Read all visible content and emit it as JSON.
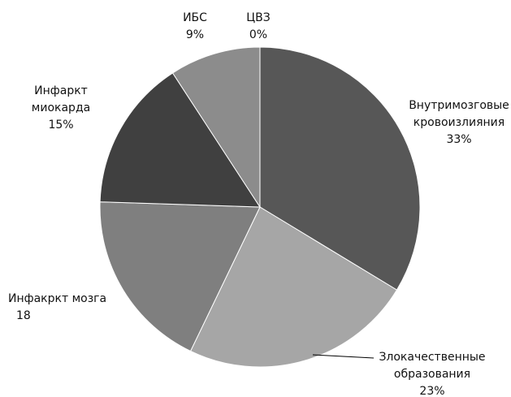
{
  "chart_data": {
    "type": "pie",
    "categories": [
      "Внутримозговые\nкровоизлияния",
      "Злокачественные\nобразования",
      "Инфакркт мозга",
      "Инфаркт\nмиокарда",
      "ИБС",
      "ЦВЗ"
    ],
    "values": [
      33,
      23,
      18,
      15,
      9,
      0
    ],
    "value_labels": [
      "33%",
      "23%",
      "18",
      "15%",
      "9%",
      "0%"
    ],
    "colors": [
      "#575757",
      "#a6a6a6",
      "#7f7f7f",
      "#404040",
      "#8c8c8c",
      "#6a6a6a"
    ]
  }
}
